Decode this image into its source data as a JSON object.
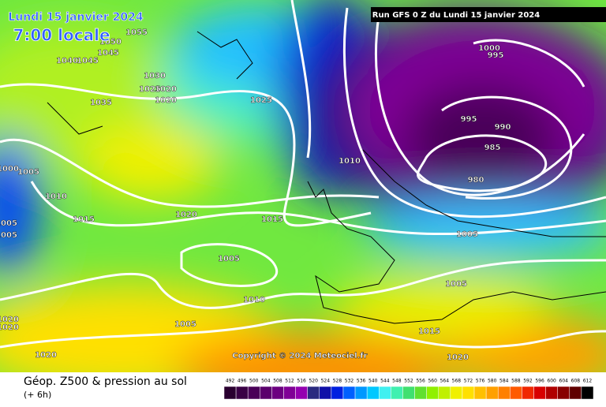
{
  "header": {
    "date": "Lundi 15 janvier 2024",
    "time": "7:00 locale",
    "run": "Run GFS 0 Z du Lundi 15 janvier 2024",
    "copyright": "Copyright © 2024 Meteociel.fr"
  },
  "isobar_labels": [
    "1055",
    "1050",
    "1045",
    "1040",
    "1045",
    "1030",
    "1025",
    "1020",
    "1020",
    "1035",
    "1025",
    "1000",
    "995",
    "995",
    "990",
    "985",
    "980",
    "1010",
    "1000",
    "1005",
    "1010",
    "1005",
    "1005",
    "1015",
    "1020",
    "1015",
    "1005",
    "1005",
    "1005",
    "1010",
    "1005",
    "1020",
    "1020",
    "1015",
    "1020",
    "1020"
  ],
  "legend": {
    "title": "Géop. Z500 & pression au sol",
    "subtitle": "(+ 6h)",
    "values": [
      492,
      496,
      500,
      504,
      508,
      512,
      516,
      520,
      524,
      528,
      532,
      536,
      540,
      544,
      548,
      552,
      556,
      560,
      564,
      568,
      572,
      576,
      580,
      584,
      588,
      592,
      596,
      600,
      604,
      608,
      612
    ],
    "colors": [
      "#2a0030",
      "#3a0045",
      "#4a0058",
      "#5a006c",
      "#6c0080",
      "#800096",
      "#9400b0",
      "#2a2a80",
      "#1010a8",
      "#0020e0",
      "#0060ff",
      "#0098ff",
      "#00c8ff",
      "#40f0f0",
      "#40f0b0",
      "#40e070",
      "#60e030",
      "#90f000",
      "#c0f000",
      "#f0f000",
      "#ffe000",
      "#ffc000",
      "#ffa000",
      "#ff8000",
      "#ff5a00",
      "#f02800",
      "#d80000",
      "#b00000",
      "#880000",
      "#600000",
      "#000000"
    ]
  }
}
